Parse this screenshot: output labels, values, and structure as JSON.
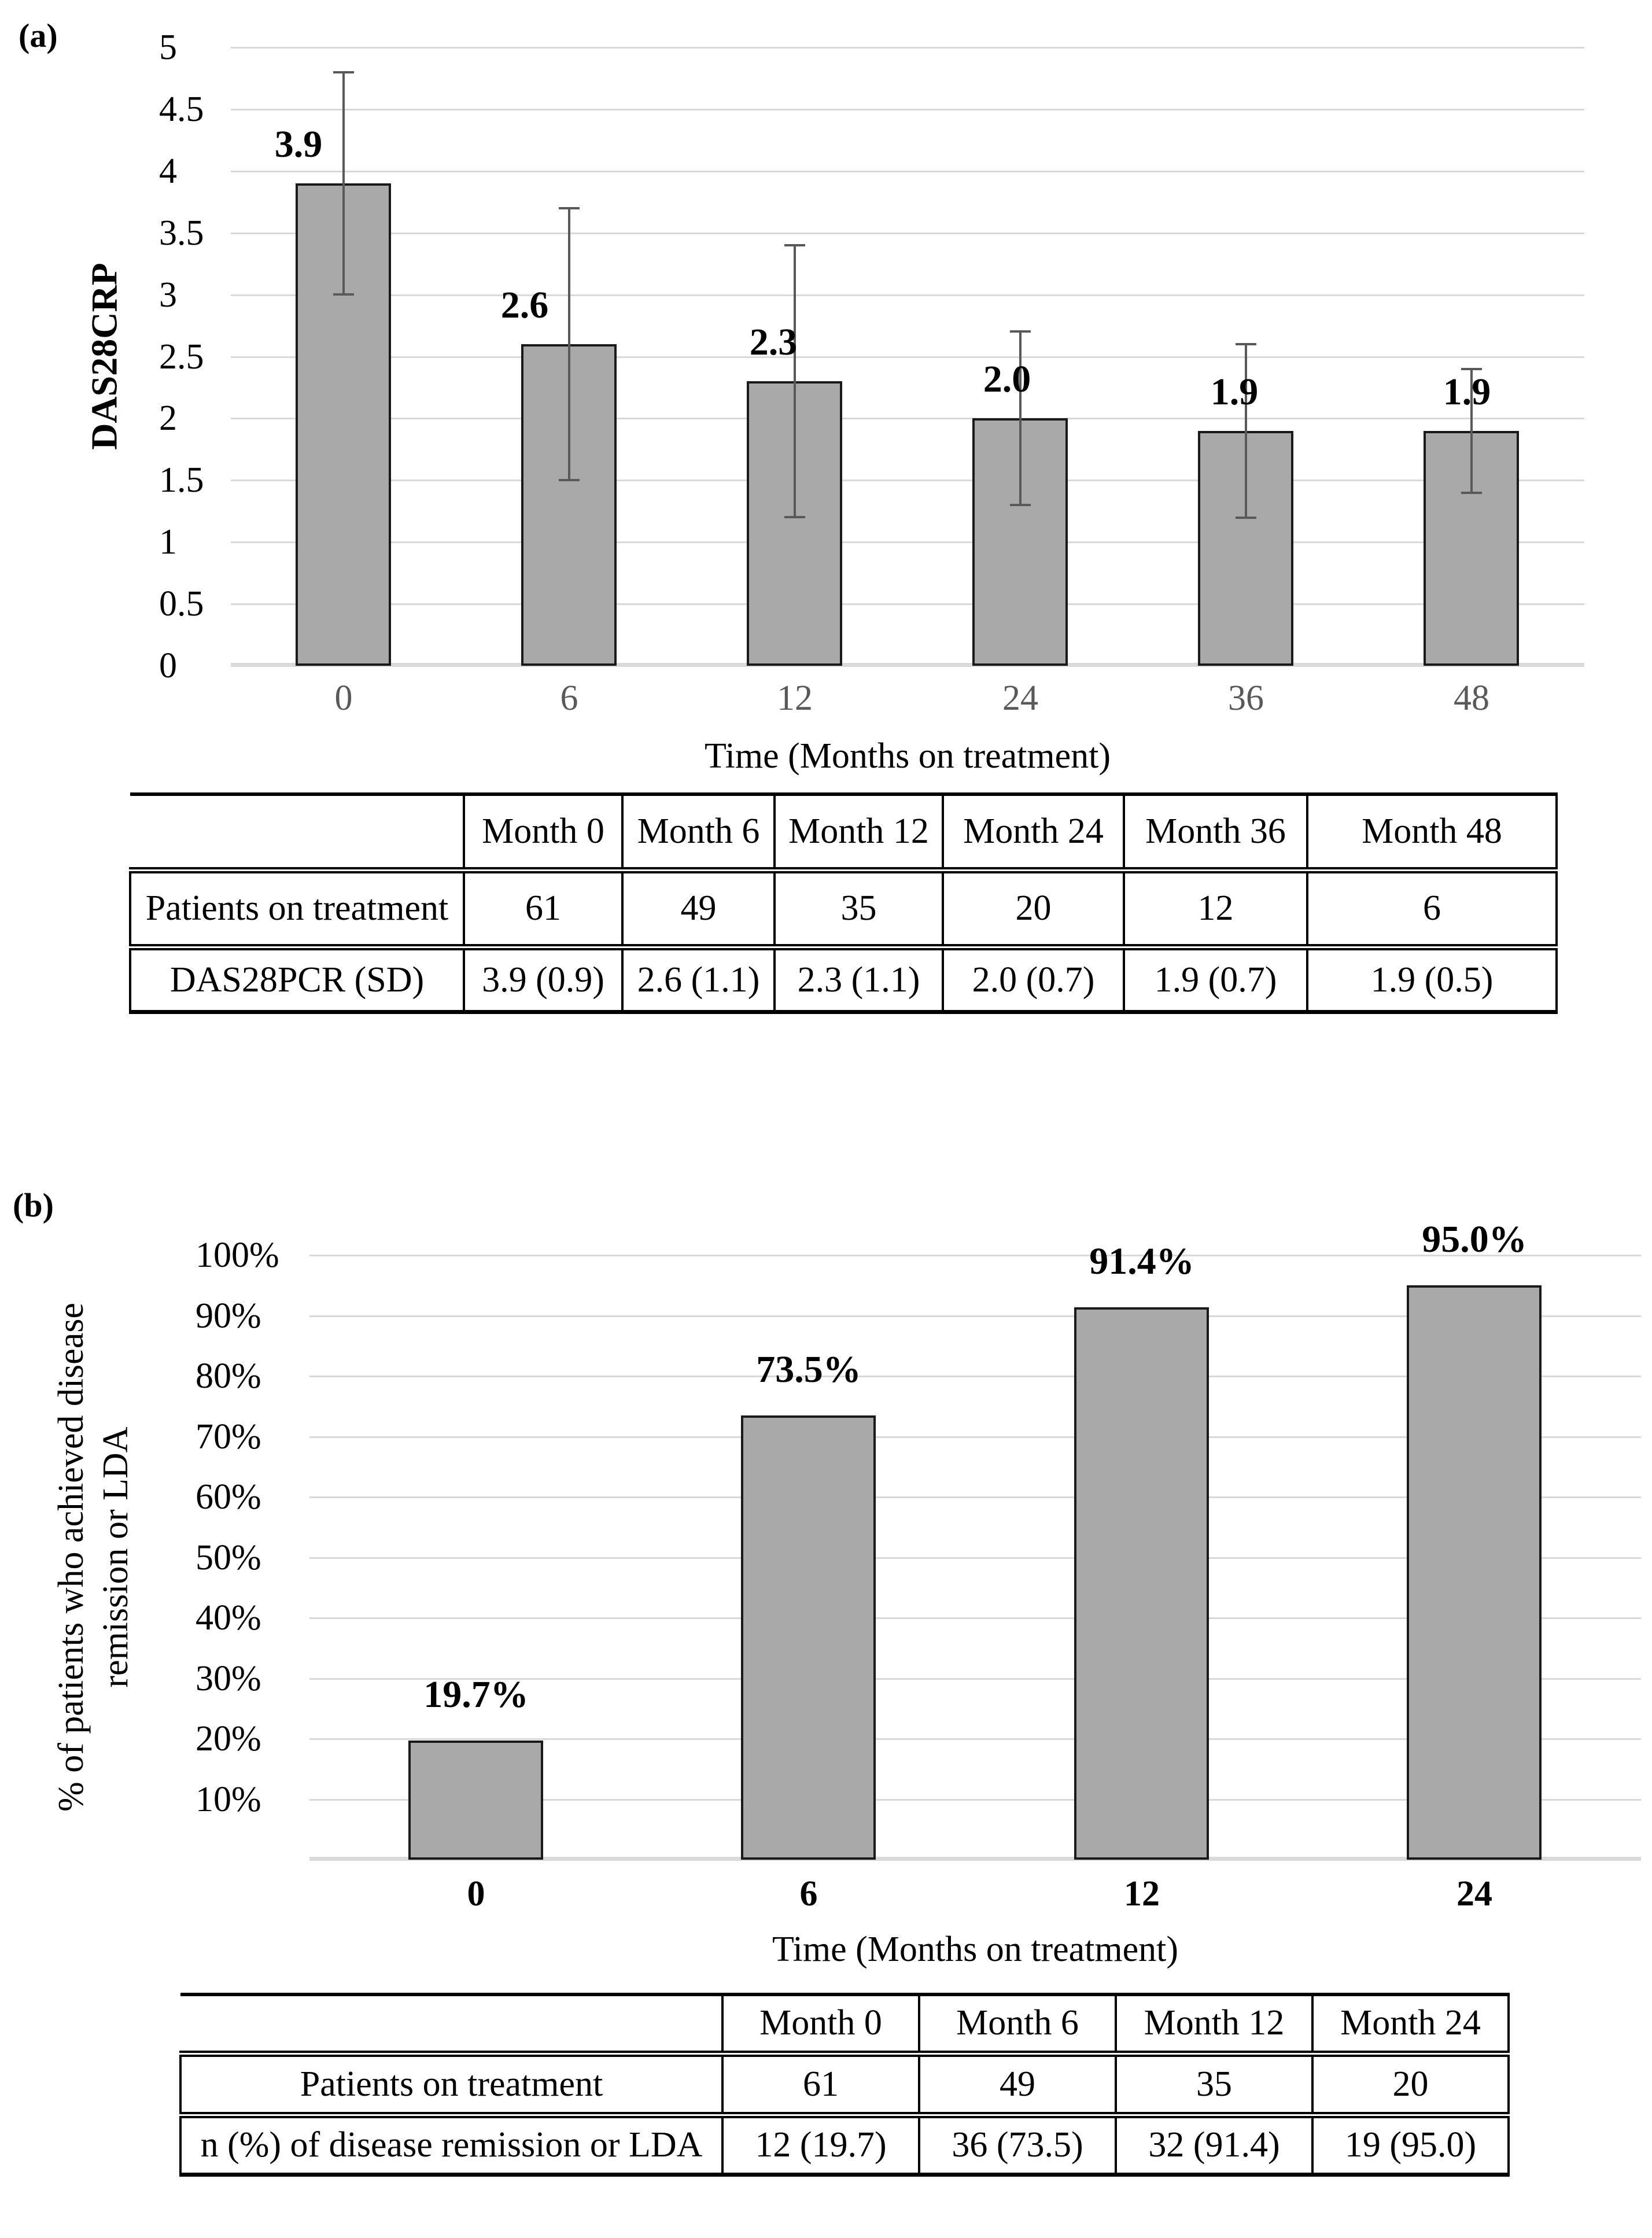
{
  "colors": {
    "bar_fill": "#a9a9a9",
    "bar_border": "#1a1a1a",
    "error_bar": "#595959",
    "gridline": "#d9d9d9",
    "axis_baseline": "#d9d9d9",
    "x_tick_color_a": "#595959",
    "text": "#000000"
  },
  "chart_data": [
    {
      "id": "a",
      "type": "bar",
      "panel_label": "(a)",
      "title": "",
      "xlabel": "Time (Months on treatment)",
      "ylabel": "DAS28CRP",
      "categories": [
        "0",
        "6",
        "12",
        "24",
        "36",
        "48"
      ],
      "series": [
        {
          "name": "DAS28CRP mean",
          "values": [
            3.9,
            2.6,
            2.3,
            2.0,
            1.9,
            1.9
          ]
        }
      ],
      "error_sd": [
        0.9,
        1.1,
        1.1,
        0.7,
        0.7,
        0.5
      ],
      "bar_value_labels": [
        "3.9",
        "2.6",
        "2.3",
        "2.0",
        "1.9",
        "1.9"
      ],
      "ylim": [
        0,
        5
      ],
      "ytick_step": 0.5,
      "ytick_labels_top_down": [
        "5",
        "4.5",
        "4",
        "3.5",
        "3",
        "2.5",
        "2",
        "1.5",
        "1",
        "0.5",
        "0"
      ],
      "grid": true,
      "legend": false,
      "table": {
        "col_headers": [
          "Month 0",
          "Month 6",
          "Month 12",
          "Month 24",
          "Month 36",
          "Month 48"
        ],
        "rows": [
          {
            "label": "Patients on treatment",
            "cells": [
              "61",
              "49",
              "35",
              "20",
              "12",
              "6"
            ]
          },
          {
            "label": "DAS28PCR (SD)",
            "cells": [
              "3.9 (0.9)",
              "2.6 (1.1)",
              "2.3 (1.1)",
              "2.0 (0.7)",
              "1.9 (0.7)",
              "1.9 (0.5)"
            ]
          }
        ]
      }
    },
    {
      "id": "b",
      "type": "bar",
      "panel_label": "(b)",
      "title": "",
      "xlabel": "Time (Months on treatment)",
      "ylabel": "% of patients who achieved disease remission or LDA",
      "ylabel_lines": [
        "% of patients who achieved disease",
        "remission or LDA"
      ],
      "categories": [
        "0",
        "6",
        "12",
        "24"
      ],
      "series": [
        {
          "name": "% of patients with remission or LDA",
          "values": [
            19.7,
            73.5,
            91.4,
            95.0
          ]
        }
      ],
      "error_sd": null,
      "bar_value_labels": [
        "19.7%",
        "73.5%",
        "91.4%",
        "95.0%"
      ],
      "ylim": [
        0,
        100
      ],
      "ytick_step": 10,
      "ytick_labels_top_down": [
        "100%",
        "90%",
        "80%",
        "70%",
        "60%",
        "50%",
        "40%",
        "30%",
        "20%",
        "10%"
      ],
      "grid": true,
      "legend": false,
      "table": {
        "col_headers": [
          "Month 0",
          "Month 6",
          "Month 12",
          "Month 24"
        ],
        "rows": [
          {
            "label": "Patients on treatment",
            "cells": [
              "61",
              "49",
              "35",
              "20"
            ]
          },
          {
            "label": "n (%) of disease remission or LDA",
            "cells": [
              "12 (19.7)",
              "36 (73.5)",
              "32 (91.4)",
              "19 (95.0)"
            ]
          }
        ]
      }
    }
  ]
}
